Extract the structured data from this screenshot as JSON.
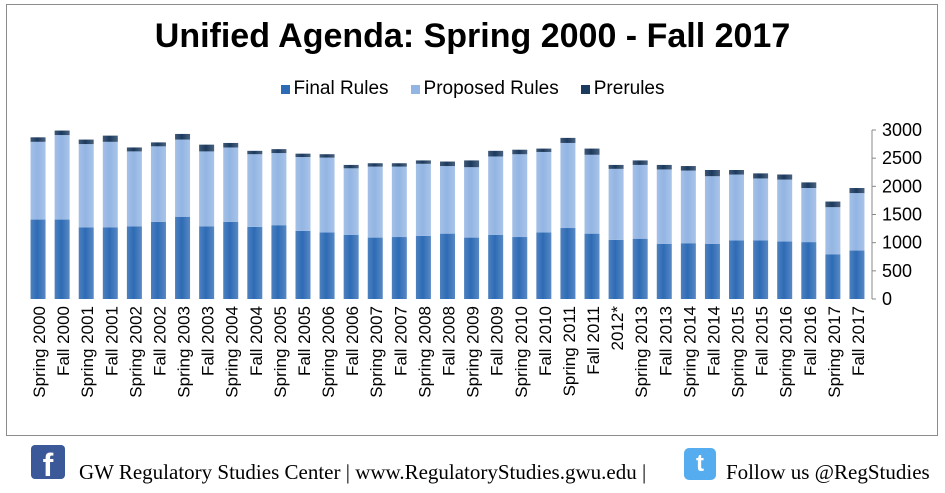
{
  "chart_data": {
    "type": "bar",
    "stacked": true,
    "title": "Unified Agenda: Spring 2000 - Fall 2017",
    "legend_position": "top",
    "grid": false,
    "ylim": [
      0,
      3000
    ],
    "yticks": [
      0,
      500,
      1000,
      1500,
      2000,
      2500,
      3000
    ],
    "categories": [
      "Spring 2000",
      "Fall 2000",
      "Spring 2001",
      "Fall 2001",
      "Spring 2002",
      "Fall 2002",
      "Spring 2003",
      "Fall 2003",
      "Spring 2004",
      "Fall 2004",
      "Spring 2005",
      "Fall 2005",
      "Spring 2006",
      "Fall 2006",
      "Spring 2007",
      "Fall 2007",
      "Spring 2008",
      "Fall 2008",
      "Spring 2009",
      "Fall 2009",
      "Spring 2010",
      "Fall 2010",
      "Spring 2011",
      "Fall 2011",
      "2012*",
      "Spring 2013",
      "Fall 2013",
      "Spring 2014",
      "Fall 2014",
      "Spring 2015",
      "Fall 2015",
      "Spring 2016",
      "Fall 2016",
      "Spring 2017",
      "Fall 2017"
    ],
    "series": [
      {
        "name": "Final Rules",
        "color": "#2e6bb5",
        "values": [
          1410,
          1410,
          1270,
          1270,
          1290,
          1370,
          1460,
          1290,
          1370,
          1280,
          1310,
          1210,
          1180,
          1140,
          1090,
          1100,
          1120,
          1160,
          1090,
          1140,
          1100,
          1180,
          1260,
          1160,
          1050,
          1070,
          980,
          990,
          980,
          1040,
          1040,
          1020,
          1010,
          790,
          860
        ]
      },
      {
        "name": "Proposed Rules",
        "color": "#93b5e3",
        "values": [
          1380,
          1500,
          1480,
          1520,
          1330,
          1340,
          1370,
          1330,
          1320,
          1290,
          1280,
          1310,
          1330,
          1180,
          1260,
          1250,
          1280,
          1200,
          1250,
          1390,
          1470,
          1430,
          1510,
          1400,
          1260,
          1310,
          1320,
          1290,
          1200,
          1170,
          1100,
          1100,
          960,
          840,
          1020
        ]
      },
      {
        "name": "Prerules",
        "color": "#1c3a5e",
        "values": [
          80,
          80,
          80,
          110,
          70,
          70,
          100,
          120,
          80,
          60,
          70,
          60,
          60,
          60,
          60,
          60,
          60,
          80,
          120,
          100,
          80,
          60,
          90,
          110,
          70,
          80,
          80,
          80,
          110,
          80,
          90,
          90,
          100,
          100,
          90
        ]
      }
    ]
  },
  "footer": {
    "facebook_glyph": "f",
    "text": "GW Regulatory Studies Center | www.RegulatoryStudies.gwu.edu |",
    "twitter_glyph": "t",
    "follow_text": "Follow us @RegStudies"
  }
}
